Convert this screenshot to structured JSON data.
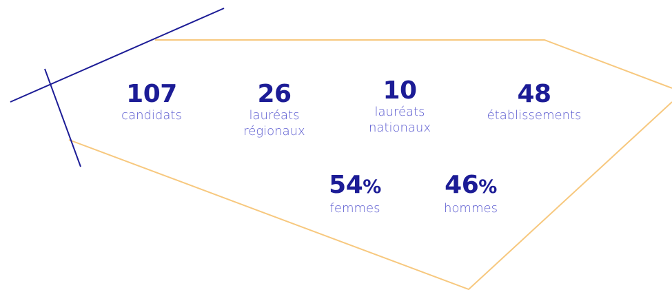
{
  "stats": [
    {
      "value": "107",
      "label": [
        "candidats"
      ]
    },
    {
      "value": "26",
      "label": [
        "lauréats",
        "régionaux"
      ]
    },
    {
      "value": "10",
      "label": [
        "lauréats",
        "nationaux"
      ]
    },
    {
      "value": "48",
      "label": [
        "établissements"
      ]
    },
    {
      "value": "54",
      "unit": "%",
      "label": [
        "femmes"
      ]
    },
    {
      "value": "46",
      "unit": "%",
      "label": [
        "hommes"
      ]
    }
  ]
}
